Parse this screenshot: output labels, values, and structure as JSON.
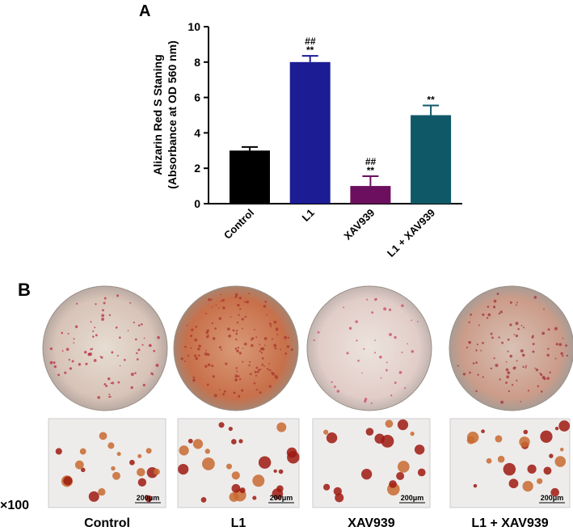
{
  "chart_data": {
    "type": "bar",
    "panel_label": "A",
    "ylabel": [
      "Alizarin Red S Staning",
      "(Absorbance at OD 560 nm)"
    ],
    "categories": [
      "Control",
      "L1",
      "XAV939",
      "L1 + XAV939"
    ],
    "values": [
      3,
      8,
      1,
      5
    ],
    "errors": [
      0.2,
      0.35,
      0.55,
      0.55
    ],
    "colors": [
      "#000000",
      "#1c1c94",
      "#6b0f5e",
      "#0f5868"
    ],
    "significance_top": [
      null,
      "##",
      "##",
      null
    ],
    "significance": [
      null,
      "**",
      "**",
      "**"
    ],
    "ylim": [
      0,
      10
    ],
    "yticks": [
      0,
      2,
      4,
      6,
      8,
      10
    ]
  },
  "images": {
    "panel_label": "B",
    "captions": [
      "Control",
      "L1",
      "XAV939",
      "L1 + XAV939"
    ],
    "scale_bar": "200μm",
    "magnification": "×100"
  }
}
